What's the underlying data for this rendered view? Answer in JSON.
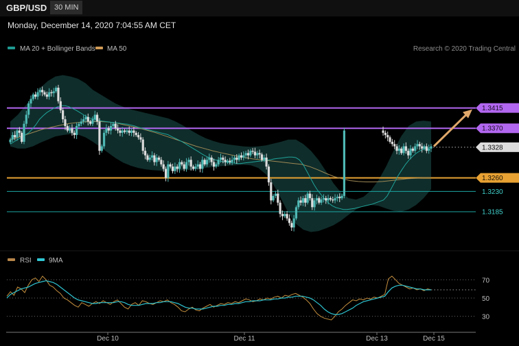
{
  "header": {
    "symbol": "GBP/USD",
    "timeframe": "30 MIN"
  },
  "datetime": "Monday, December 14, 2020 7:04:55 AM CET",
  "credit": "Research © 2020 Trading Central",
  "colors": {
    "up": "#4fb8b4",
    "down": "#dcdcdc",
    "ma20": "#20a49a",
    "ma50": "#9f8a55",
    "resistance": "#b267f0",
    "support_orange": "#e8a233",
    "support_teal": "#1ba7a4",
    "rsi": "#c7913f",
    "rsi_ma": "#2ec4d1",
    "arrow": "#e0a86a"
  },
  "legend": [
    {
      "label": "MA 20 + Bollinger Bands",
      "color": "#1f9a92"
    },
    {
      "label": "MA 50",
      "color": "#d19b57"
    }
  ],
  "rsi_legend": [
    {
      "label": "RSI",
      "color": "#b8864a"
    },
    {
      "label": "9MA",
      "color": "#30c7d4"
    }
  ],
  "chart_data": [
    {
      "type": "candlestick",
      "ylim": [
        1.3115,
        1.3495
      ],
      "levels": [
        {
          "label": "1.3415",
          "value": 1.3415,
          "kind": "resistance"
        },
        {
          "label": "1.3370",
          "value": 1.337,
          "kind": "resistance"
        },
        {
          "label": "1.3328",
          "value": 1.3328,
          "kind": "last"
        },
        {
          "label": "1.3260",
          "value": 1.326,
          "kind": "support_orange"
        },
        {
          "label": "1.3230",
          "value": 1.323,
          "kind": "support_teal"
        },
        {
          "label": "1.3185",
          "value": 1.3185,
          "kind": "support_teal"
        }
      ],
      "x_ticks": [
        "Dec 10",
        "Dec 11",
        "Dec 13",
        "Dec 15"
      ],
      "closes": [
        1.3345,
        1.3355,
        1.335,
        1.3365,
        1.336,
        1.334,
        1.338,
        1.34,
        1.3425,
        1.3435,
        1.3445,
        1.344,
        1.345,
        1.3455,
        1.345,
        1.3445,
        1.344,
        1.345,
        1.3448,
        1.3452,
        1.346,
        1.343,
        1.341,
        1.339,
        1.3375,
        1.3365,
        1.337,
        1.336,
        1.3355,
        1.3375,
        1.338,
        1.3385,
        1.339,
        1.3395,
        1.3385,
        1.338,
        1.339,
        1.34,
        1.3385,
        1.332,
        1.333,
        1.336,
        1.337,
        1.3365,
        1.3375,
        1.338,
        1.337,
        1.3365,
        1.336,
        1.3365,
        1.3362,
        1.3365,
        1.336,
        1.3365,
        1.336,
        1.3355,
        1.335,
        1.3345,
        1.332,
        1.331,
        1.33,
        1.3305,
        1.331,
        1.3295,
        1.3305,
        1.33,
        1.329,
        1.328,
        1.326,
        1.329,
        1.3285,
        1.3275,
        1.3285,
        1.328,
        1.3295,
        1.329,
        1.328,
        1.3295,
        1.33,
        1.3285,
        1.328,
        1.3285,
        1.329,
        1.328,
        1.33,
        1.329,
        1.33,
        1.3305,
        1.3295,
        1.3285,
        1.329,
        1.33,
        1.3305,
        1.33,
        1.3295,
        1.3298,
        1.3295,
        1.33,
        1.3305,
        1.33,
        1.331,
        1.3305,
        1.331,
        1.3315,
        1.331,
        1.332,
        1.3318,
        1.331,
        1.3315,
        1.3312,
        1.33,
        1.3305,
        1.3285,
        1.325,
        1.321,
        1.322,
        1.3225,
        1.3205,
        1.318,
        1.3175,
        1.318,
        1.317,
        1.316,
        1.315,
        1.317,
        1.3195,
        1.321,
        1.3205,
        1.3215,
        1.3205,
        1.3225,
        1.3215,
        1.3195,
        1.321,
        1.3215,
        1.3205,
        1.3212,
        1.3215,
        1.321,
        1.3215,
        1.3212,
        1.321,
        1.3215,
        1.3218,
        1.3215,
        1.322,
        1.3365,
        1.336,
        1.3355,
        1.335,
        1.334,
        1.3335,
        1.333,
        1.332,
        1.3325,
        1.3315,
        1.333,
        1.332,
        1.331,
        1.3325,
        1.332,
        1.333,
        1.3335,
        1.333,
        1.3325,
        1.333,
        1.332,
        1.3325,
        1.333
      ],
      "ma20": [
        1.3335,
        1.334,
        1.3345,
        1.335,
        1.3355,
        1.336,
        1.3368,
        1.3378,
        1.339,
        1.3398,
        1.3405,
        1.341,
        1.3415,
        1.3418,
        1.342,
        1.342,
        1.3418,
        1.3414,
        1.341,
        1.3405,
        1.34,
        1.3395,
        1.3392,
        1.339,
        1.3388,
        1.3386,
        1.3385,
        1.3384,
        1.3383,
        1.3382,
        1.3381,
        1.338,
        1.3379,
        1.3377,
        1.3375,
        1.3372,
        1.337,
        1.3368,
        1.3366,
        1.3364,
        1.3362,
        1.336,
        1.3358,
        1.3356,
        1.3352,
        1.3348,
        1.3344,
        1.334,
        1.3335,
        1.333,
        1.3325,
        1.332,
        1.3315,
        1.331,
        1.3306,
        1.3303,
        1.33,
        1.3298,
        1.3296,
        1.3295,
        1.3294,
        1.3293,
        1.3292,
        1.3292,
        1.3293,
        1.3294,
        1.3295,
        1.3296,
        1.3297,
        1.3298,
        1.3299,
        1.33,
        1.3302,
        1.3303,
        1.3304,
        1.3305,
        1.3306,
        1.3306,
        1.3305,
        1.33,
        1.329,
        1.3275,
        1.326,
        1.3245,
        1.3232,
        1.3222,
        1.3212,
        1.3204,
        1.3198,
        1.3194,
        1.3192,
        1.319,
        1.319,
        1.3191,
        1.3192,
        1.3194,
        1.3196,
        1.3198,
        1.32,
        1.3202,
        1.3205,
        1.3208,
        1.3211,
        1.322,
        1.3235,
        1.325,
        1.3265,
        1.3278,
        1.329,
        1.33,
        1.3308,
        1.3315,
        1.332,
        1.3324,
        1.3326,
        1.3328
      ],
      "ma50": [
        1.3345,
        1.335,
        1.3356,
        1.3362,
        1.3368,
        1.3372,
        1.3376,
        1.338,
        1.3382,
        1.3384,
        1.3385,
        1.3385,
        1.3384,
        1.3382,
        1.3378,
        1.3374,
        1.337,
        1.3365,
        1.336,
        1.3354,
        1.3348,
        1.3342,
        1.3336,
        1.333,
        1.3325,
        1.332,
        1.3316,
        1.3312,
        1.3308,
        1.3305,
        1.3302,
        1.33,
        1.3298,
        1.3296,
        1.3294,
        1.3292,
        1.329,
        1.3285,
        1.3278,
        1.327,
        1.3263,
        1.3258,
        1.3254,
        1.3252,
        1.3251,
        1.3251,
        1.3252,
        1.3254,
        1.3256,
        1.3258,
        1.3259,
        1.326,
        1.326
      ],
      "upper_band": [
        1.3385,
        1.34,
        1.342,
        1.344,
        1.346,
        1.3475,
        1.3485,
        1.3488,
        1.3485,
        1.348,
        1.347,
        1.3455,
        1.3445,
        1.3435,
        1.3425,
        1.3418,
        1.3412,
        1.3408,
        1.3404,
        1.34,
        1.3396,
        1.3392,
        1.3385,
        1.3376,
        1.3366,
        1.3356,
        1.3348,
        1.3342,
        1.3337,
        1.3334,
        1.3332,
        1.333,
        1.3329,
        1.333,
        1.3332,
        1.3336,
        1.334,
        1.3345,
        1.3345,
        1.3335,
        1.332,
        1.33,
        1.3275,
        1.3248,
        1.3228,
        1.3215,
        1.3212,
        1.3218,
        1.3232,
        1.3255,
        1.3285,
        1.332,
        1.3352,
        1.3375,
        1.3385,
        1.3387,
        1.3385
      ],
      "lower_band": [
        1.333,
        1.3325,
        1.3325,
        1.333,
        1.3338,
        1.3345,
        1.3352,
        1.3355,
        1.3357,
        1.3356,
        1.335,
        1.334,
        1.3328,
        1.3316,
        1.3304,
        1.3294,
        1.3287,
        1.3282,
        1.3279,
        1.3277,
        1.3276,
        1.3276,
        1.3276,
        1.3277,
        1.3278,
        1.328,
        1.3282,
        1.3284,
        1.3286,
        1.3287,
        1.3288,
        1.3289,
        1.3288,
        1.3282,
        1.3268,
        1.3245,
        1.3215,
        1.3182,
        1.3158,
        1.3145,
        1.314,
        1.3142,
        1.3148,
        1.3155,
        1.3165,
        1.3178,
        1.319,
        1.3198,
        1.32,
        1.3198,
        1.3192,
        1.3187,
        1.3185,
        1.319,
        1.32,
        1.3215,
        1.3235
      ]
    },
    {
      "type": "line",
      "title": "RSI",
      "ylim": [
        20,
        80
      ],
      "y_ticks": [
        70,
        50,
        30
      ],
      "series": [
        {
          "name": "RSI",
          "values": [
            52,
            57,
            53,
            62,
            60,
            56,
            64,
            70,
            72,
            68,
            74,
            70,
            64,
            62,
            58,
            55,
            50,
            48,
            45,
            42,
            40,
            45,
            43,
            41,
            44,
            46,
            44,
            47,
            45,
            43,
            46,
            48,
            44,
            40,
            38,
            43,
            45,
            42,
            47,
            46,
            44,
            43,
            45,
            47,
            46,
            48,
            45,
            43,
            40,
            36,
            35,
            38,
            40,
            37,
            36,
            39,
            41,
            43,
            40,
            42,
            44,
            43,
            45,
            44,
            46,
            45,
            47,
            49,
            48,
            46,
            47,
            49,
            48,
            50,
            49,
            51,
            52,
            50,
            53,
            52,
            54,
            55,
            53,
            51,
            48,
            44,
            38,
            33,
            30,
            28,
            27,
            26,
            30,
            35,
            38,
            42,
            45,
            48,
            47,
            49,
            48,
            50,
            49,
            51,
            50,
            52,
            54,
            71,
            74,
            70,
            66,
            64,
            62,
            60,
            61,
            59,
            60,
            58,
            60,
            59
          ]
        },
        {
          "name": "9MA",
          "values": [
            50,
            54,
            56,
            58,
            60,
            61,
            62,
            64,
            66,
            67,
            68,
            69,
            68,
            67,
            65,
            62,
            59,
            56,
            53,
            50,
            48,
            47,
            46,
            45,
            44,
            44,
            45,
            45,
            45,
            45,
            45,
            46,
            46,
            45,
            43,
            42,
            42,
            42,
            43,
            44,
            44,
            44,
            45,
            45,
            46,
            46,
            46,
            45,
            44,
            42,
            40,
            39,
            39,
            38,
            38,
            38,
            39,
            40,
            41,
            41,
            42,
            42,
            43,
            43,
            44,
            44,
            45,
            46,
            46,
            47,
            47,
            47,
            48,
            48,
            48,
            49,
            49,
            50,
            50,
            51,
            51,
            52,
            52,
            52,
            51,
            50,
            48,
            45,
            42,
            38,
            35,
            33,
            32,
            32,
            33,
            35,
            37,
            39,
            42,
            44,
            46,
            47,
            48,
            49,
            50,
            51,
            52,
            57,
            61,
            63,
            64,
            64,
            63,
            62,
            61,
            60,
            60,
            59,
            59,
            59
          ]
        }
      ]
    }
  ]
}
